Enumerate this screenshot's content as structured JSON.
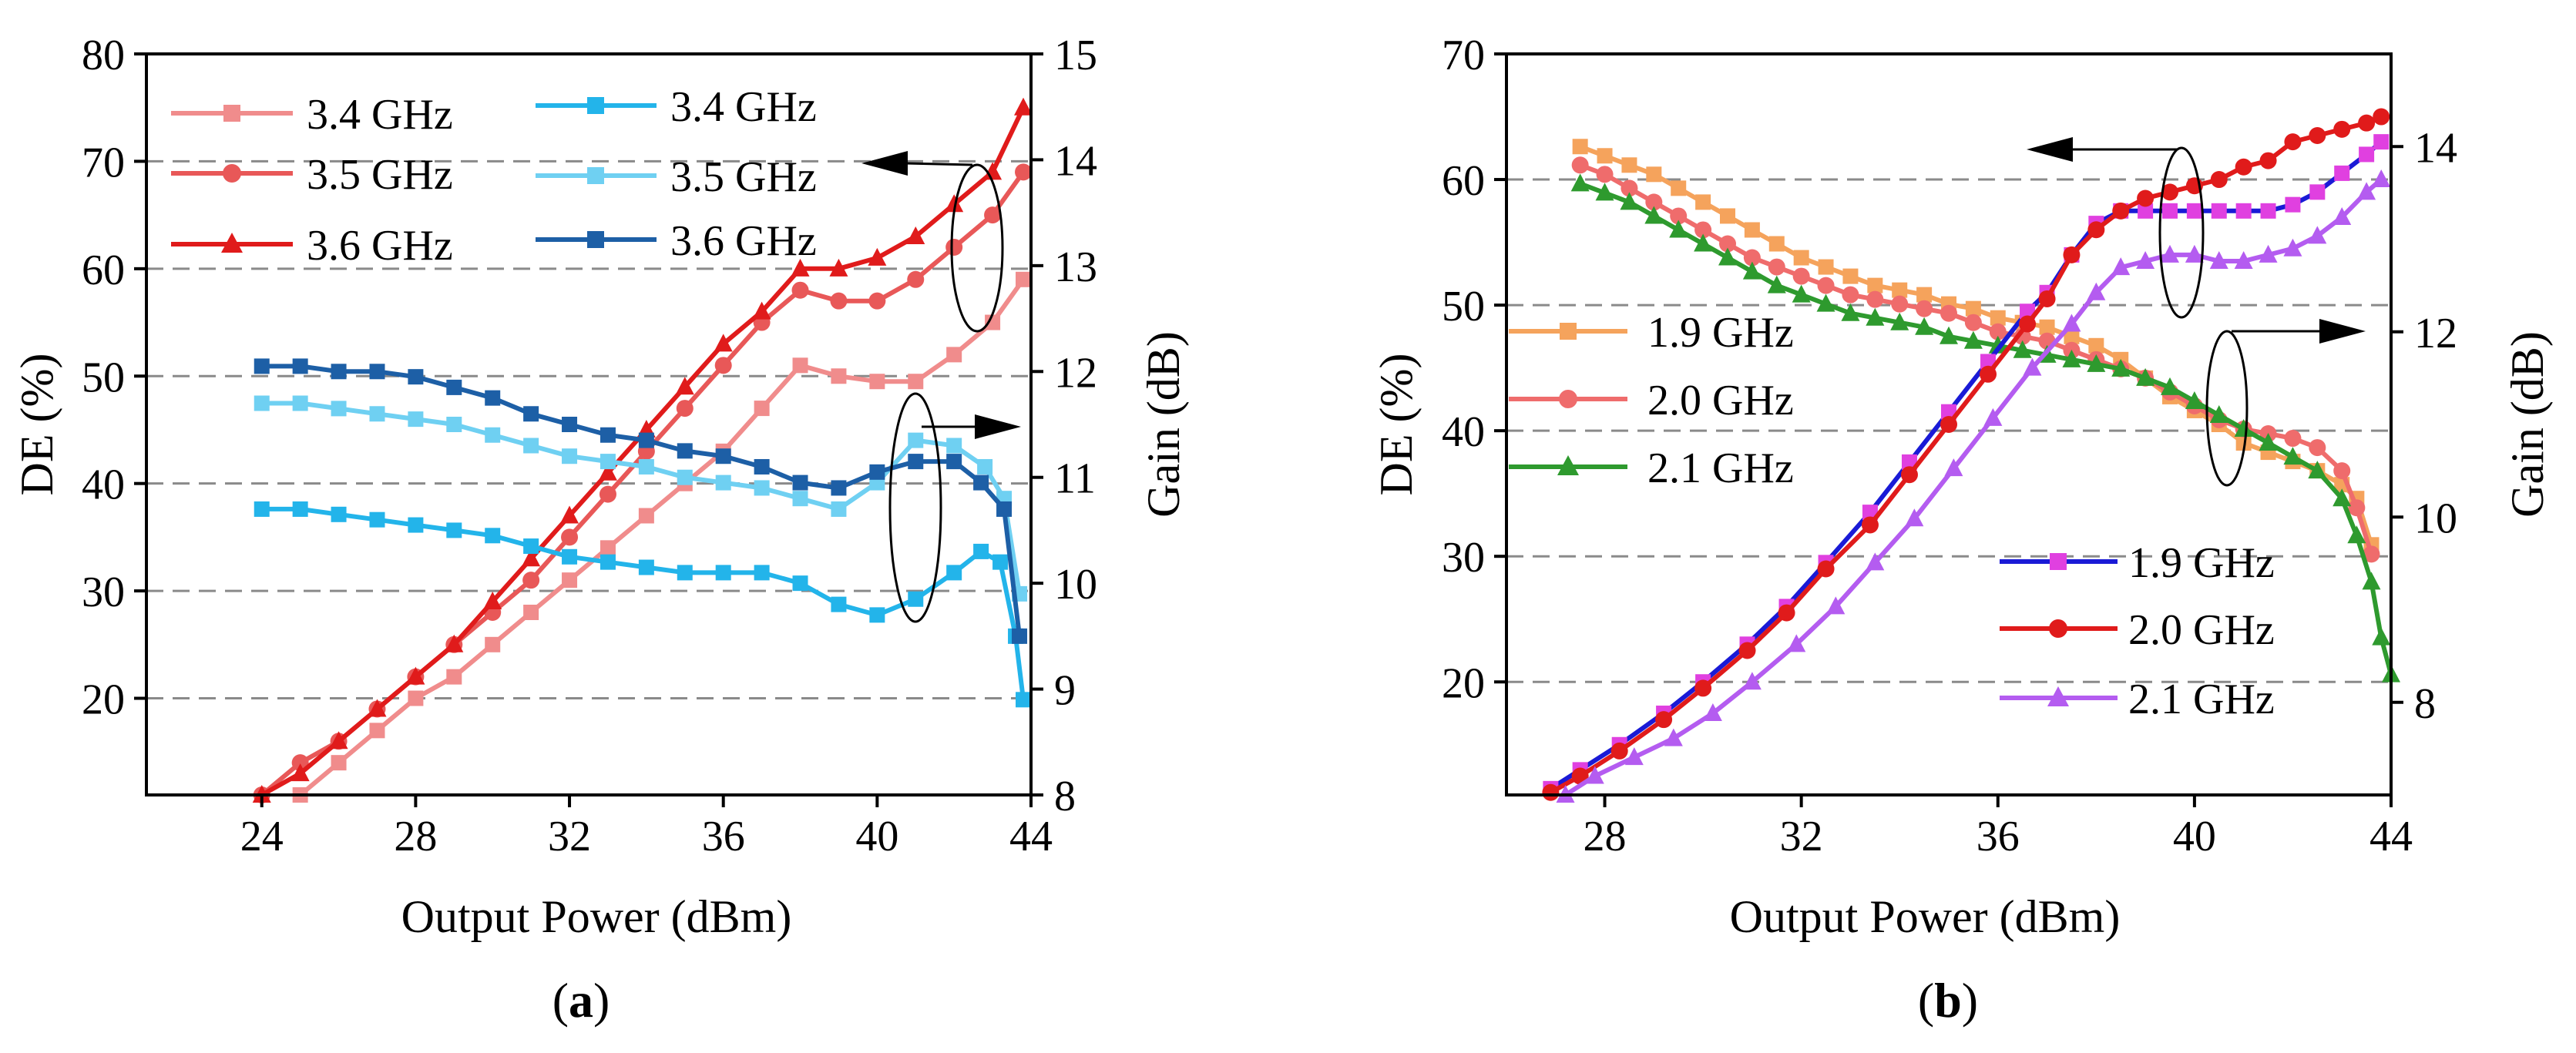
{
  "chart_data": [
    {
      "type": "line",
      "caption": "(a)",
      "caption_letter": "a",
      "xlabel": "Output Power (dBm)",
      "ylabel_left": "DE (%)",
      "ylabel_right": "Gain (dB)",
      "xlim": [
        21,
        44
      ],
      "ylim_left": [
        11,
        80
      ],
      "ylim_right": [
        8,
        15
      ],
      "xticks": [
        24,
        28,
        32,
        36,
        40,
        44
      ],
      "yticks_left": [
        20,
        30,
        40,
        50,
        60,
        70,
        80
      ],
      "yticks_right": [
        8,
        9,
        10,
        11,
        12,
        13,
        14,
        15
      ],
      "grid": "horizontal dashed",
      "annotations": [
        "left arrow: DE curves use left axis",
        "right arrow: Gain curves use right axis"
      ],
      "series": [
        {
          "name": "3.4 GHz",
          "axis": "left",
          "quantity": "DE",
          "color": "#f08c8c",
          "marker": "square",
          "x": [
            25,
            26,
            27,
            28,
            29,
            30,
            31,
            32,
            33,
            34,
            35,
            36,
            37,
            38,
            39,
            40,
            41,
            42,
            43,
            43.8
          ],
          "y": [
            11,
            14,
            17,
            20,
            22,
            25,
            28,
            31,
            34,
            37,
            40,
            43,
            47,
            51,
            50,
            49.5,
            49.5,
            52,
            55,
            59
          ]
        },
        {
          "name": "3.5 GHz",
          "axis": "left",
          "quantity": "DE",
          "color": "#e85858",
          "marker": "circle",
          "x": [
            24,
            25,
            26,
            27,
            28,
            29,
            30,
            31,
            32,
            33,
            34,
            35,
            36,
            37,
            38,
            39,
            40,
            41,
            42,
            43,
            43.8
          ],
          "y": [
            11,
            14,
            16,
            19,
            22,
            25,
            28,
            31,
            35,
            39,
            43,
            47,
            51,
            55,
            58,
            57,
            57,
            59,
            62,
            65,
            69
          ]
        },
        {
          "name": "3.6 GHz",
          "axis": "left",
          "quantity": "DE",
          "color": "#e01b1b",
          "marker": "triangle",
          "x": [
            24,
            25,
            26,
            27,
            28,
            29,
            30,
            31,
            32,
            33,
            34,
            35,
            36,
            37,
            38,
            39,
            40,
            41,
            42,
            43,
            43.8
          ],
          "y": [
            11,
            13,
            16,
            19,
            22,
            25,
            29,
            33,
            37,
            41,
            45,
            49,
            53,
            56,
            60,
            60,
            61,
            63,
            66,
            69,
            75
          ]
        },
        {
          "name": "3.4 GHz",
          "axis": "right",
          "quantity": "Gain",
          "color": "#23b4ea",
          "marker": "square",
          "x": [
            24,
            25,
            26,
            27,
            28,
            29,
            30,
            31,
            32,
            33,
            34,
            35,
            36,
            37,
            38,
            39,
            40,
            41,
            42,
            42.7,
            43.2,
            43.6,
            43.8
          ],
          "y": [
            10.7,
            10.7,
            10.65,
            10.6,
            10.55,
            10.5,
            10.45,
            10.35,
            10.25,
            10.2,
            10.15,
            10.1,
            10.1,
            10.1,
            10.0,
            9.8,
            9.7,
            9.85,
            10.1,
            10.3,
            10.2,
            9.5,
            8.9
          ]
        },
        {
          "name": "3.5 GHz",
          "axis": "right",
          "quantity": "Gain",
          "color": "#6fd0f2",
          "marker": "square",
          "x": [
            24,
            25,
            26,
            27,
            28,
            29,
            30,
            31,
            32,
            33,
            34,
            35,
            36,
            37,
            38,
            39,
            40,
            41,
            42,
            42.8,
            43.3,
            43.7
          ],
          "y": [
            11.7,
            11.7,
            11.65,
            11.6,
            11.55,
            11.5,
            11.4,
            11.3,
            11.2,
            11.15,
            11.1,
            11.0,
            10.95,
            10.9,
            10.8,
            10.7,
            10.95,
            11.35,
            11.3,
            11.1,
            10.8,
            9.9
          ]
        },
        {
          "name": "3.6 GHz",
          "axis": "right",
          "quantity": "Gain",
          "color": "#1d5fa6",
          "marker": "square",
          "x": [
            24,
            25,
            26,
            27,
            28,
            29,
            30,
            31,
            32,
            33,
            34,
            35,
            36,
            37,
            38,
            39,
            40,
            41,
            42,
            42.7,
            43.3,
            43.7
          ],
          "y": [
            12.05,
            12.05,
            12.0,
            12.0,
            11.95,
            11.85,
            11.75,
            11.6,
            11.5,
            11.4,
            11.35,
            11.25,
            11.2,
            11.1,
            10.95,
            10.9,
            11.05,
            11.15,
            11.15,
            10.95,
            10.7,
            9.5
          ]
        }
      ],
      "legend": {
        "left_column": [
          "3.4 GHz",
          "3.5 GHz",
          "3.6 GHz"
        ],
        "right_column": [
          "3.4 GHz",
          "3.5 GHz",
          "3.6 GHz"
        ]
      }
    },
    {
      "type": "line",
      "caption": "(b)",
      "caption_letter": "b",
      "xlabel": "Output Power (dBm)",
      "ylabel_left": "DE (%)",
      "ylabel_right": "Gain (dB)",
      "xlim": [
        26,
        44
      ],
      "ylim_left": [
        11,
        70
      ],
      "ylim_right": [
        7,
        15
      ],
      "xticks": [
        28,
        32,
        36,
        40,
        44
      ],
      "yticks_left": [
        20,
        30,
        40,
        50,
        60,
        70
      ],
      "yticks_right": [
        8,
        10,
        12,
        14
      ],
      "grid": "horizontal dashed",
      "annotations": [
        "left arrow: DE curves use left axis",
        "right arrow: Gain curves use right axis"
      ],
      "series": [
        {
          "name": "1.9 GHz",
          "axis": "right",
          "quantity": "Gain",
          "color": "#f5a35c",
          "marker": "square",
          "x": [
            27.5,
            28,
            28.5,
            29,
            29.5,
            30,
            30.5,
            31,
            31.5,
            32,
            32.5,
            33,
            33.5,
            34,
            34.5,
            35,
            35.5,
            36,
            36.5,
            37,
            37.5,
            38,
            38.5,
            39,
            39.5,
            40,
            40.5,
            41,
            41.5,
            42,
            42.5,
            43,
            43.3,
            43.6
          ],
          "y": [
            14.0,
            13.9,
            13.8,
            13.7,
            13.55,
            13.4,
            13.25,
            13.1,
            12.95,
            12.8,
            12.7,
            12.6,
            12.5,
            12.45,
            12.4,
            12.3,
            12.25,
            12.15,
            12.1,
            12.05,
            11.95,
            11.85,
            11.7,
            11.5,
            11.3,
            11.15,
            11.0,
            10.8,
            10.7,
            10.6,
            10.5,
            10.35,
            10.2,
            9.7
          ]
        },
        {
          "name": "2.0 GHz",
          "axis": "right",
          "quantity": "Gain",
          "color": "#ef6c6c",
          "marker": "circle",
          "x": [
            27.5,
            28,
            28.5,
            29,
            29.5,
            30,
            30.5,
            31,
            31.5,
            32,
            32.5,
            33,
            33.5,
            34,
            34.5,
            35,
            35.5,
            36,
            36.5,
            37,
            37.5,
            38,
            38.5,
            39,
            39.5,
            40,
            40.5,
            41,
            41.5,
            42,
            42.5,
            43,
            43.3,
            43.6
          ],
          "y": [
            13.8,
            13.7,
            13.55,
            13.4,
            13.25,
            13.1,
            12.95,
            12.8,
            12.7,
            12.6,
            12.5,
            12.4,
            12.35,
            12.3,
            12.25,
            12.2,
            12.1,
            12.0,
            11.95,
            11.9,
            11.8,
            11.7,
            11.6,
            11.5,
            11.35,
            11.2,
            11.05,
            10.95,
            10.9,
            10.85,
            10.75,
            10.5,
            10.1,
            9.6
          ]
        },
        {
          "name": "2.1 GHz",
          "axis": "right",
          "quantity": "Gain",
          "color": "#2e9a2e",
          "marker": "triangle",
          "x": [
            27.5,
            28,
            28.5,
            29,
            29.5,
            30,
            30.5,
            31,
            31.5,
            32,
            32.5,
            33,
            33.5,
            34,
            34.5,
            35,
            35.5,
            36,
            36.5,
            37,
            37.5,
            38,
            38.5,
            39,
            39.5,
            40,
            40.5,
            41,
            41.5,
            42,
            42.5,
            43,
            43.3,
            43.6,
            43.8,
            44
          ],
          "y": [
            13.6,
            13.5,
            13.4,
            13.25,
            13.1,
            12.95,
            12.8,
            12.65,
            12.5,
            12.4,
            12.3,
            12.2,
            12.15,
            12.1,
            12.05,
            11.95,
            11.9,
            11.85,
            11.8,
            11.75,
            11.7,
            11.65,
            11.6,
            11.5,
            11.4,
            11.25,
            11.1,
            10.95,
            10.8,
            10.65,
            10.5,
            10.2,
            9.8,
            9.3,
            8.7,
            8.3
          ]
        },
        {
          "name": "1.9 GHz",
          "axis": "left",
          "quantity": "DE",
          "color": "#1a1ad6",
          "marker": "square",
          "marker_color": "#e040e0",
          "x": [
            26.9,
            27.5,
            28.3,
            29.2,
            30.0,
            30.9,
            31.7,
            32.5,
            33.4,
            34.2,
            35.0,
            35.8,
            36.6,
            37.0,
            37.5,
            38.0,
            38.5,
            39.0,
            39.5,
            40.0,
            40.5,
            41.0,
            41.5,
            42.0,
            42.5,
            43.0,
            43.5,
            43.8
          ],
          "y": [
            11.5,
            13,
            15,
            17.5,
            20,
            23,
            26,
            29.5,
            33.5,
            37.5,
            41.5,
            45.5,
            49.5,
            51,
            54,
            56.5,
            57.5,
            57.5,
            57.5,
            57.5,
            57.5,
            57.5,
            57.5,
            58,
            59,
            60.5,
            62,
            63
          ]
        },
        {
          "name": "2.0 GHz",
          "axis": "left",
          "quantity": "DE",
          "color": "#e01b1b",
          "marker": "circle",
          "x": [
            26.9,
            27.5,
            28.3,
            29.2,
            30.0,
            30.9,
            31.7,
            32.5,
            33.4,
            34.2,
            35.0,
            35.8,
            36.6,
            37.0,
            37.5,
            38.0,
            38.5,
            39.0,
            39.5,
            40.0,
            40.5,
            41.0,
            41.5,
            42.0,
            42.5,
            43.0,
            43.5,
            43.8
          ],
          "y": [
            11.2,
            12.5,
            14.5,
            17,
            19.5,
            22.5,
            25.5,
            29,
            32.5,
            36.5,
            40.5,
            44.5,
            48.5,
            50.5,
            54,
            56,
            57.5,
            58.5,
            59,
            59.5,
            60,
            61,
            61.5,
            63,
            63.5,
            64,
            64.5,
            65
          ]
        },
        {
          "name": "2.1 GHz",
          "axis": "left",
          "quantity": "DE",
          "color": "#b45cf0",
          "marker": "triangle",
          "x": [
            27.2,
            27.8,
            28.6,
            29.4,
            30.2,
            31.0,
            31.9,
            32.7,
            33.5,
            34.3,
            35.1,
            35.9,
            36.7,
            37.5,
            38.0,
            38.5,
            39.0,
            39.5,
            40.0,
            40.5,
            41.0,
            41.5,
            42.0,
            42.5,
            43.0,
            43.5,
            43.8
          ],
          "y": [
            11,
            12.5,
            14,
            15.5,
            17.5,
            20,
            23,
            26,
            29.5,
            33,
            37,
            41,
            45,
            48.5,
            51,
            53,
            53.5,
            54,
            54,
            53.5,
            53.5,
            54,
            54.5,
            55.5,
            57,
            59,
            60
          ]
        }
      ],
      "legend": {
        "upper_left": [
          "1.9 GHz",
          "2.0 GHz",
          "2.1 GHz"
        ],
        "lower_right": [
          "1.9 GHz",
          "2.0 GHz",
          "2.1 GHz"
        ]
      }
    }
  ]
}
